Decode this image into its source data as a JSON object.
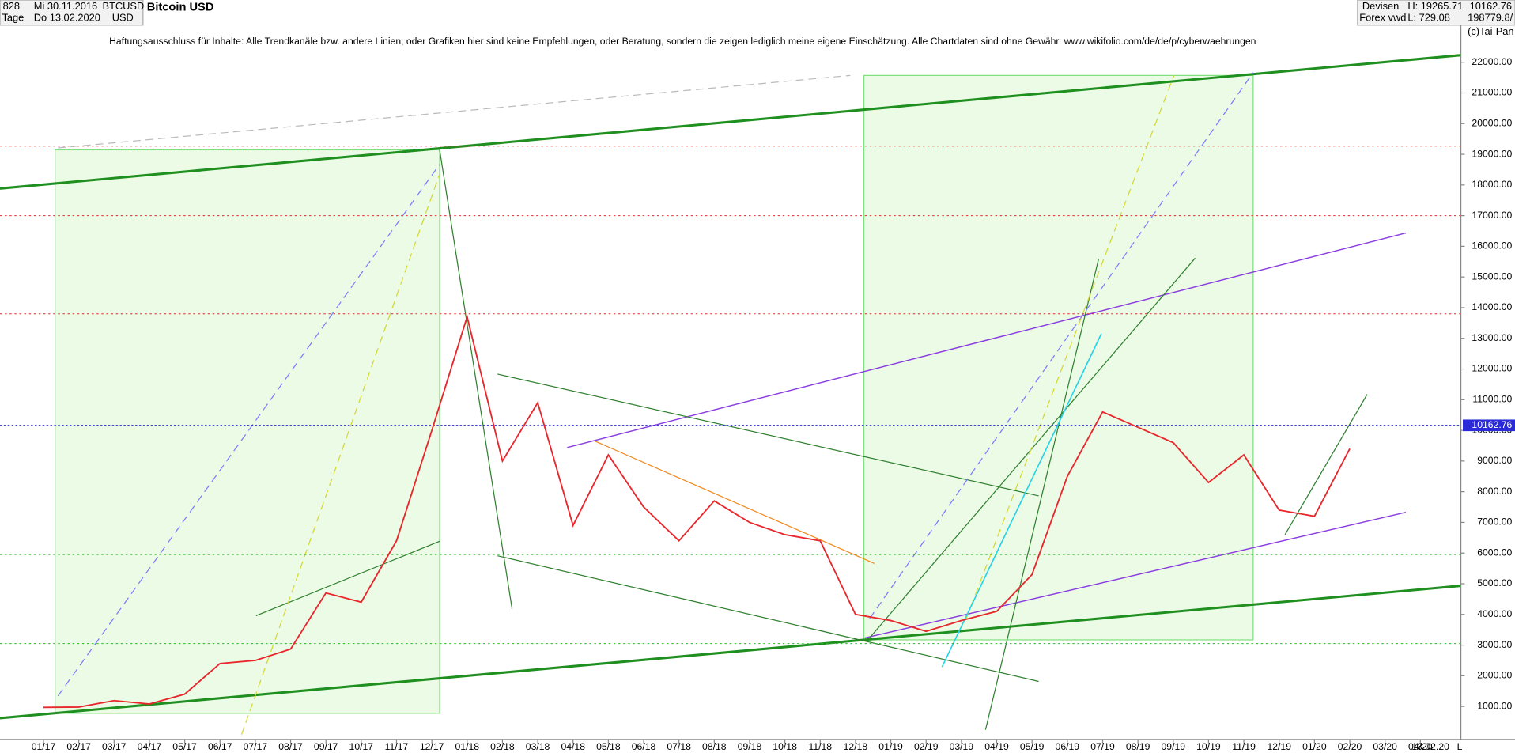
{
  "header": {
    "id": "828",
    "date_from": "Mi 30.11.2016",
    "symbol": "BTCUSD",
    "currency": "USD",
    "title": "Bitcoin USD",
    "period": "Tage",
    "date_to": "Do 13.02.2020",
    "market": "Devisen",
    "source": "Forex vwd",
    "high": "H: 19265.71",
    "low": "L: 729.08",
    "last": "10162.76",
    "volume": "198779.8/",
    "copyright": "(c)Tai-Pan"
  },
  "disclaimer": "Haftungsausschluss für Inhalte: Alle Trendkanäle bzw. andere Linien, oder Grafiken hier sind keine Empfehlungen, oder Beratung, sondern die zeigen lediglich meine eigene Einschätzung. Alle Chartdaten sind ohne Gewähr.  www.wikifolio.com/de/de/p/cyberwaehrungen",
  "footer_labels": [
    "13.02.20",
    "L"
  ],
  "chart_data": {
    "type": "line",
    "categories": [
      "01/17",
      "02/17",
      "03/17",
      "04/17",
      "05/17",
      "06/17",
      "07/17",
      "08/17",
      "09/17",
      "10/17",
      "11/17",
      "12/17",
      "01/18",
      "02/18",
      "03/18",
      "04/18",
      "05/18",
      "06/18",
      "07/18",
      "08/18",
      "09/18",
      "10/18",
      "11/18",
      "12/18",
      "01/19",
      "02/19",
      "03/19",
      "04/19",
      "05/19",
      "06/19",
      "07/19",
      "08/19",
      "09/19",
      "10/19",
      "11/19",
      "12/19",
      "01/20",
      "02/20",
      "03/20",
      "04/20"
    ],
    "values": [
      970,
      980,
      1190,
      1080,
      1400,
      2400,
      2500,
      2870,
      4700,
      4400,
      6400,
      10000,
      13700,
      9000,
      10900,
      6900,
      9200,
      7500,
      6400,
      7700,
      7000,
      6600,
      6400,
      4000,
      3800,
      3450,
      3800,
      4100,
      5300,
      8500,
      10600,
      10100,
      9600,
      8300,
      9200,
      7400,
      7200,
      9400,
      null,
      null
    ],
    "color": "#e8262b",
    "last_value": {
      "value": 10162.76,
      "label": "10162.76"
    },
    "reference_lines": [
      {
        "value": 19265.71,
        "color": "#e8262b"
      },
      {
        "value": 17000,
        "color": "#e8262b"
      },
      {
        "value": 13800,
        "color": "#e8262b"
      },
      {
        "value": 5950,
        "color": "#22bb22"
      },
      {
        "value": 3050,
        "color": "#22bb22"
      }
    ],
    "ylim": [
      0,
      24000
    ],
    "yticks": [
      {
        "value": 1000,
        "label": "1000.00"
      },
      {
        "value": 2000,
        "label": "2000.00"
      },
      {
        "value": 3000,
        "label": "3000.00"
      },
      {
        "value": 4000,
        "label": "4000.00"
      },
      {
        "value": 5000,
        "label": "5000.00"
      },
      {
        "value": 6000,
        "label": "6000.00"
      },
      {
        "value": 7000,
        "label": "7000.00"
      },
      {
        "value": 8000,
        "label": "8000.00"
      },
      {
        "value": 9000,
        "label": "9000.00"
      },
      {
        "value": 10000,
        "label": "10000.00"
      },
      {
        "value": 11000,
        "label": "11000.00"
      },
      {
        "value": 12000,
        "label": "12000.00"
      },
      {
        "value": 13000,
        "label": "13000.00"
      },
      {
        "value": 14000,
        "label": "14000.00"
      },
      {
        "value": 15000,
        "label": "15000.00"
      },
      {
        "value": 16000,
        "label": "16000.00"
      },
      {
        "value": 17000,
        "label": "17000.00"
      },
      {
        "value": 18000,
        "label": "18000.00"
      },
      {
        "value": 19000,
        "label": "19000.00"
      },
      {
        "value": 20000,
        "label": "20000.00"
      },
      {
        "value": 21000,
        "label": "21000.00"
      },
      {
        "value": 22000,
        "label": "22000.00"
      }
    ],
    "grid": false
  }
}
